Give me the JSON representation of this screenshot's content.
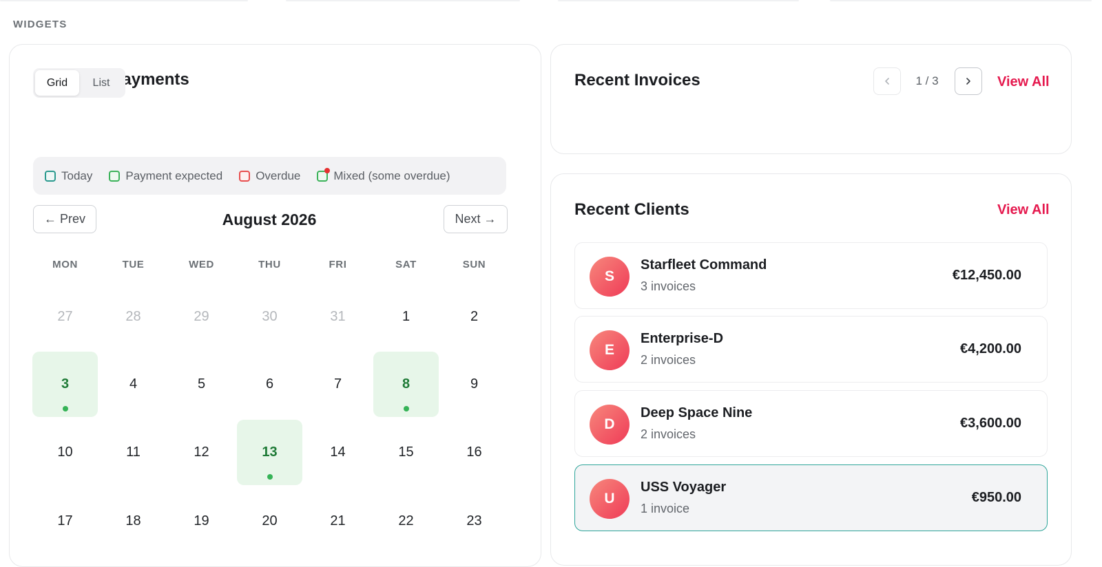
{
  "section_label": "WIDGETS",
  "payments": {
    "title": "Expected Payments",
    "view_toggle": [
      "Grid",
      "List"
    ],
    "active_view": "Grid",
    "legend": [
      "Today",
      "Payment expected",
      "Overdue",
      "Mixed (some overdue)"
    ],
    "prev_label": "← Prev",
    "next_label": "Next →",
    "month_label": "August 2026",
    "weekdays": [
      "MON",
      "TUE",
      "WED",
      "THU",
      "FRI",
      "SAT",
      "SUN"
    ],
    "weeks": [
      [
        "27",
        "28",
        "29",
        "30",
        "31",
        "1",
        "2"
      ],
      [
        "3",
        "4",
        "5",
        "6",
        "7",
        "8",
        "9"
      ],
      [
        "10",
        "11",
        "12",
        "13",
        "14",
        "15",
        "16"
      ],
      [
        "17",
        "18",
        "19",
        "20",
        "21",
        "22",
        "23"
      ]
    ],
    "previous_month_days": [
      "27",
      "28",
      "29",
      "30",
      "31"
    ],
    "payment_expected_days": [
      "3",
      "8",
      "13"
    ]
  },
  "invoices": {
    "title": "Recent Invoices",
    "page_indicator": "1 / 3",
    "view_all": "View All"
  },
  "clients": {
    "title": "Recent Clients",
    "view_all": "View All",
    "items": [
      {
        "initial": "S",
        "name": "Starfleet Command",
        "invoices": "3 invoices",
        "amount": "€12,450.00"
      },
      {
        "initial": "E",
        "name": "Enterprise-D",
        "invoices": "2 invoices",
        "amount": "€4,200.00"
      },
      {
        "initial": "D",
        "name": "Deep Space Nine",
        "invoices": "2 invoices",
        "amount": "€3,600.00"
      },
      {
        "initial": "U",
        "name": "USS Voyager",
        "invoices": "1 invoice",
        "amount": "€950.00"
      }
    ]
  },
  "colors": {
    "accent": "#e5194e",
    "expected": "#e7f6e9",
    "expected_dot": "#36b357",
    "selected_border": "#2ea59a"
  }
}
